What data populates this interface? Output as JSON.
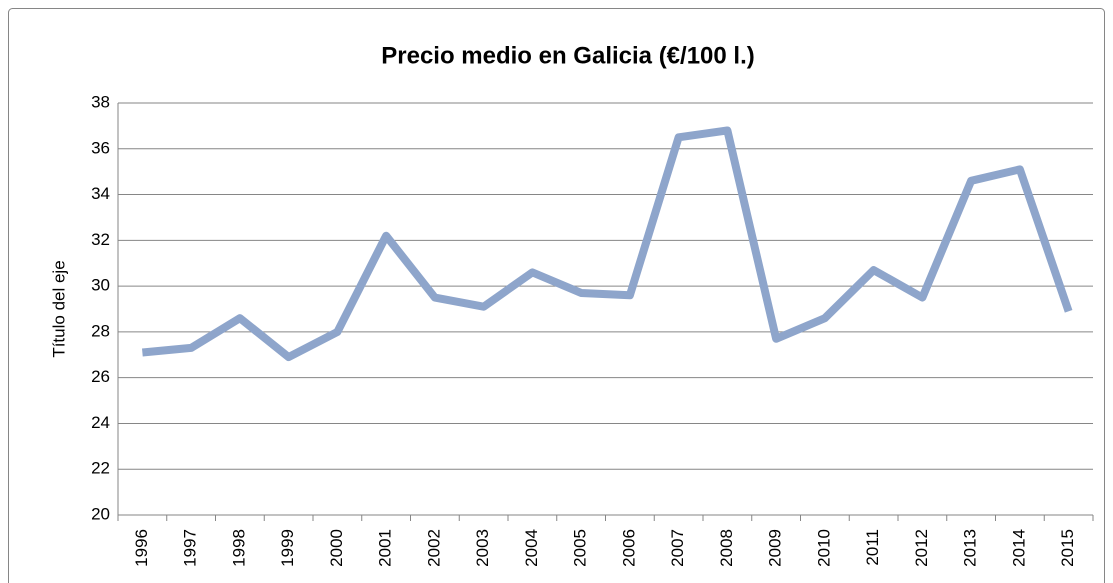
{
  "chart_data": {
    "type": "line",
    "title": "Precio medio en Galicia (€/100 l.)",
    "y_label": "Título del eje",
    "categories": [
      "1996",
      "1997",
      "1998",
      "1999",
      "2000",
      "2001",
      "2002",
      "2003",
      "2004",
      "2005",
      "2006",
      "2007",
      "2008",
      "2009",
      "2010",
      "2011",
      "2012",
      "2013",
      "2014",
      "2015"
    ],
    "series": [
      {
        "name": "Precio medio",
        "color": "#8ea5cb",
        "values": [
          27.1,
          27.3,
          28.6,
          26.9,
          28.0,
          32.2,
          29.5,
          29.1,
          30.6,
          29.7,
          29.6,
          36.5,
          36.8,
          27.7,
          28.6,
          30.7,
          29.5,
          34.6,
          35.1,
          28.9
        ]
      }
    ],
    "ylim": [
      20,
      38
    ],
    "yticks": [
      20,
      22,
      24,
      26,
      28,
      30,
      32,
      34,
      36,
      38
    ],
    "grid": true,
    "legend": false
  }
}
